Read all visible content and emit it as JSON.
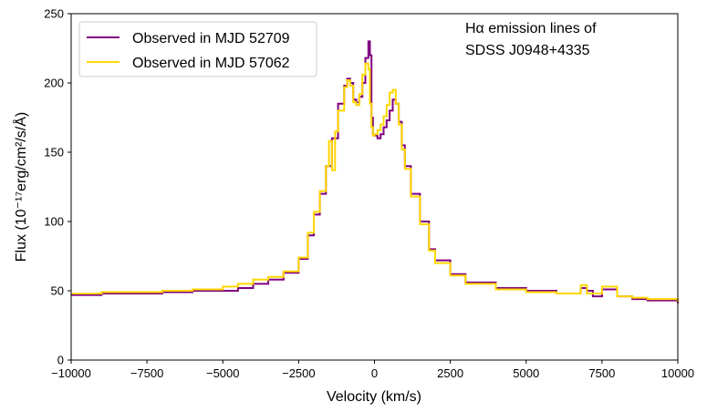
{
  "chart_data": {
    "type": "line",
    "drawstyle": "steps",
    "title": "",
    "annotation": [
      "Hα emission lines of",
      "SDSS J0948+4335"
    ],
    "xlabel": "Velocity (km/s)",
    "ylabel": "Flux (10⁻¹⁷erg/cm²/s/Å)",
    "xlim": [
      -10000,
      10000
    ],
    "ylim": [
      0,
      250
    ],
    "xticks": [
      -10000,
      -7500,
      -5000,
      -2500,
      0,
      2500,
      5000,
      7500,
      10000
    ],
    "xtick_labels": [
      "−10000",
      "−7500",
      "−5000",
      "−2500",
      "0",
      "2500",
      "5000",
      "7500",
      "10000"
    ],
    "yticks": [
      0,
      50,
      100,
      150,
      200,
      250
    ],
    "ytick_labels": [
      "0",
      "50",
      "100",
      "150",
      "200",
      "250"
    ],
    "grid": false,
    "legend_position": "top-left",
    "series": [
      {
        "name": "Observed in MJD 52709",
        "color": "#800080",
        "x": [
          -10000,
          -9000,
          -8000,
          -7000,
          -6000,
          -5000,
          -4500,
          -4000,
          -3500,
          -3000,
          -2500,
          -2200,
          -2000,
          -1800,
          -1600,
          -1400,
          -1200,
          -1000,
          -900,
          -800,
          -700,
          -600,
          -500,
          -400,
          -300,
          -200,
          -150,
          -100,
          -50,
          0,
          100,
          200,
          300,
          400,
          500,
          600,
          700,
          800,
          900,
          1000,
          1200,
          1500,
          1800,
          2000,
          2500,
          3000,
          4000,
          5000,
          6000,
          6500,
          6800,
          7000,
          7200,
          7500,
          8000,
          8500,
          9000,
          10000
        ],
        "values": [
          47,
          48,
          48,
          49,
          50,
          50,
          52,
          55,
          58,
          63,
          73,
          90,
          105,
          120,
          140,
          160,
          185,
          198,
          203,
          200,
          188,
          186,
          190,
          200,
          218,
          230,
          220,
          175,
          163,
          162,
          160,
          163,
          168,
          173,
          180,
          188,
          185,
          172,
          155,
          140,
          120,
          100,
          80,
          72,
          62,
          56,
          52,
          50,
          48,
          48,
          52,
          50,
          46,
          51,
          46,
          44,
          43,
          41
        ]
      },
      {
        "name": "Observed in MJD 57062",
        "color": "#FFD700",
        "x": [
          -10000,
          -9000,
          -8000,
          -7000,
          -6000,
          -5000,
          -4500,
          -4000,
          -3500,
          -3000,
          -2500,
          -2200,
          -2000,
          -1800,
          -1600,
          -1500,
          -1400,
          -1300,
          -1200,
          -1000,
          -900,
          -800,
          -700,
          -600,
          -500,
          -400,
          -300,
          -200,
          -150,
          -100,
          -50,
          0,
          100,
          200,
          300,
          400,
          500,
          600,
          700,
          800,
          900,
          1000,
          1200,
          1500,
          1800,
          2000,
          2500,
          3000,
          4000,
          5000,
          6000,
          6500,
          6800,
          7000,
          7200,
          7500,
          8000,
          8500,
          9000,
          10000
        ],
        "values": [
          48,
          49,
          49,
          50,
          51,
          53,
          55,
          58,
          60,
          64,
          74,
          92,
          107,
          122,
          140,
          158,
          137,
          165,
          180,
          197,
          202,
          198,
          186,
          184,
          192,
          206,
          214,
          210,
          185,
          168,
          162,
          163,
          166,
          170,
          176,
          184,
          193,
          195,
          185,
          170,
          152,
          138,
          118,
          98,
          79,
          70,
          61,
          55,
          51,
          49,
          48,
          48,
          54,
          48,
          48,
          53,
          46,
          45,
          44,
          42
        ]
      }
    ]
  }
}
